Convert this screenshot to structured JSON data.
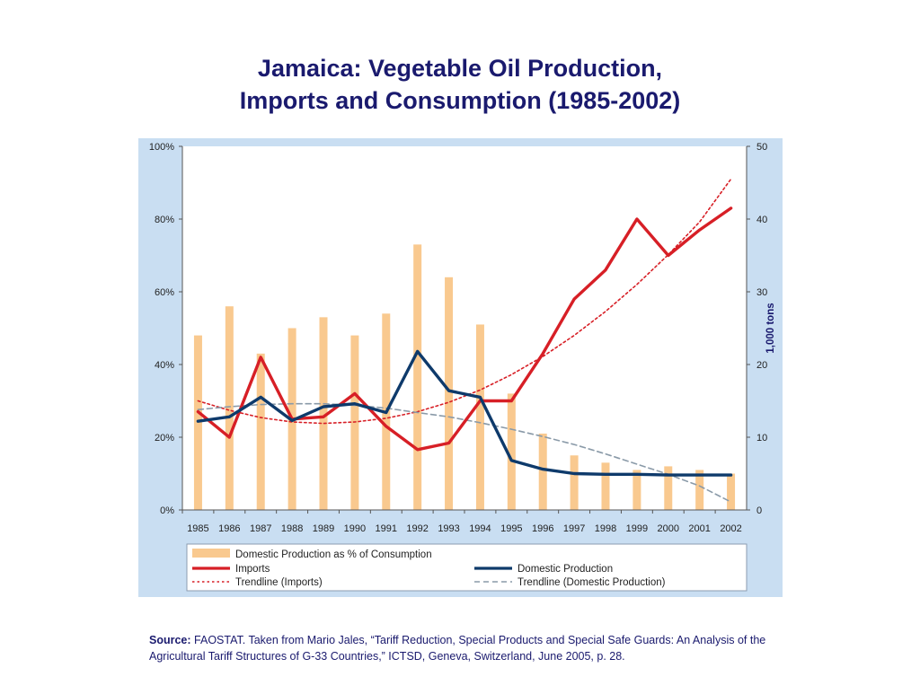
{
  "title": {
    "line1": "Jamaica: Vegetable Oil Production,",
    "line2": "Imports and Consumption (1985-2002)"
  },
  "colors": {
    "panel": "#c9def2",
    "bar": "#f9c98f",
    "imports": "#d71f26",
    "domestic": "#0e3a6b",
    "trend_domestic": "#8a9aa8",
    "title": "#1a1a6e"
  },
  "chart_data": {
    "type": "bar+line",
    "categories": [
      "1985",
      "1986",
      "1987",
      "1988",
      "1989",
      "1990",
      "1991",
      "1992",
      "1993",
      "1994",
      "1995",
      "1996",
      "1997",
      "1998",
      "1999",
      "2000",
      "2001",
      "2002"
    ],
    "y_left": {
      "ticks": [
        "0%",
        "20%",
        "40%",
        "60%",
        "80%",
        "100%"
      ],
      "ylim": [
        0,
        100
      ]
    },
    "y_right": {
      "label": "1,000 tons",
      "ticks": [
        "0",
        "10",
        "20",
        "30",
        "40",
        "50"
      ],
      "ylim": [
        0,
        50
      ]
    },
    "grid": false,
    "legend_position": "bottom",
    "series": [
      {
        "name": "Domestic Production as % of Consumption",
        "type": "bar",
        "axis": "left",
        "values": [
          48,
          56,
          43,
          50,
          53,
          48,
          54,
          73,
          64,
          51,
          32,
          21,
          15,
          13,
          11,
          12,
          11,
          10
        ]
      },
      {
        "name": "Imports",
        "type": "line",
        "axis": "right",
        "values": [
          13.5,
          10,
          21,
          12.5,
          12.8,
          16,
          11.5,
          8.3,
          9.2,
          15,
          15,
          21.5,
          29,
          33,
          40,
          35,
          38.5,
          41.5
        ]
      },
      {
        "name": "Domestic Production",
        "type": "line",
        "axis": "right",
        "values": [
          12.2,
          12.8,
          15.5,
          12.3,
          14.2,
          14.6,
          13.4,
          21.8,
          16.4,
          15.5,
          6.8,
          5.6,
          5,
          4.9,
          4.9,
          4.8,
          4.8,
          4.8
        ]
      },
      {
        "name": "Trendline (Imports)",
        "type": "trend",
        "axis": "right",
        "values": [
          15,
          13.7,
          12.7,
          12.1,
          11.9,
          12.1,
          12.6,
          13.5,
          14.8,
          16.5,
          18.6,
          21.1,
          24.0,
          27.3,
          31.0,
          35.1,
          39.6,
          45.5
        ]
      },
      {
        "name": "Trendline (Domestic Production)",
        "type": "trend",
        "axis": "right",
        "values": [
          13.8,
          14.2,
          14.5,
          14.6,
          14.6,
          14.4,
          14.0,
          13.4,
          12.8,
          12.0,
          11.1,
          10.1,
          9.0,
          7.7,
          6.3,
          4.9,
          3.3,
          1.1
        ]
      }
    ]
  },
  "source": {
    "label": "Source:",
    "text": "FAOSTAT. Taken from Mario Jales, “Tariff Reduction, Special Products and Special Safe Guards: An Analysis of the Agricultural Tariff Structures of G-33 Countries,” ICTSD, Geneva, Switzerland, June 2005, p. 28."
  }
}
